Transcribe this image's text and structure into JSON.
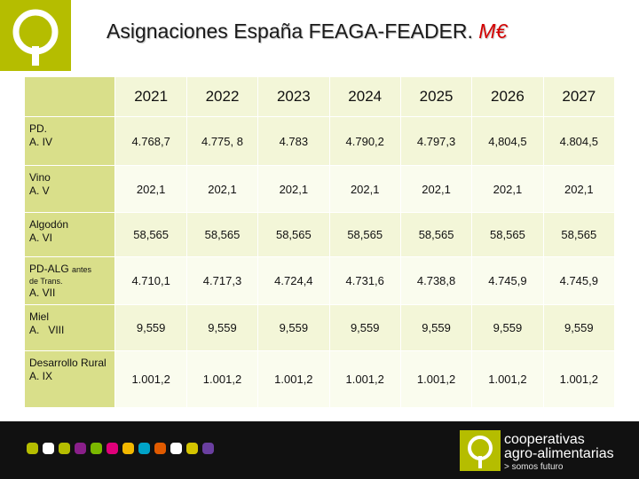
{
  "header": {
    "title": "Asignaciones España FEAGA-FEADER.",
    "unit": "M€",
    "logo_icon": "cooperativas-logo-icon",
    "logo_color": "#b5bd00"
  },
  "table": {
    "years": [
      "2021",
      "2022",
      "2023",
      "2024",
      "2025",
      "2026",
      "2027"
    ],
    "rows": [
      {
        "name": "PD.",
        "suffix": "",
        "sub": "",
        "line2": "A. IV",
        "values": [
          "4.768,7",
          "4.775, 8",
          "4.783",
          "4.790,2",
          "4.797,3",
          "4,804,5",
          "4.804,5"
        ]
      },
      {
        "name": "Vino",
        "suffix": "",
        "sub": "",
        "line2": "A. V",
        "values": [
          "202,1",
          "202,1",
          "202,1",
          "202,1",
          "202,1",
          "202,1",
          "202,1"
        ]
      },
      {
        "name": "Algodón",
        "suffix": "",
        "sub": "",
        "line2": "A. VI",
        "values": [
          "58,565",
          "58,565",
          "58,565",
          "58,565",
          "58,565",
          "58,565",
          "58,565"
        ]
      },
      {
        "name": "PD-ALG",
        "suffix": "antes",
        "sub": "de Trans.",
        "line2": "A. VII",
        "values": [
          "4.710,1",
          "4.717,3",
          "4.724,4",
          "4.731,6",
          "4.738,8",
          "4.745,9",
          "4.745,9"
        ]
      },
      {
        "name": "Miel",
        "suffix": "",
        "sub": "",
        "line2": "A.   VIII",
        "values": [
          "9,559",
          "9,559",
          "9,559",
          "9,559",
          "9,559",
          "9,559",
          "9,559"
        ]
      },
      {
        "name": "Desarrollo Rural",
        "suffix": "",
        "sub": "",
        "line2": "A. IX",
        "values": [
          "1.001,2",
          "1.001,2",
          "1.001,2",
          "1.001,2",
          "1.001,2",
          "1.001,2",
          "1.001,2"
        ]
      }
    ]
  },
  "footer": {
    "dot_colors": [
      "#b5bd00",
      "#ffffff",
      "#b5bd00",
      "#8a1f8a",
      "#7ab800",
      "#e0007a",
      "#f2b800",
      "#00a3c8",
      "#e05a00",
      "#ffffff",
      "#d4c400",
      "#6a3fa0"
    ],
    "brand_line1": "cooperativas",
    "brand_line2": "agro-alimentarias",
    "tagline": "> somos futuro",
    "logo_icon": "cooperativas-logo-icon"
  }
}
